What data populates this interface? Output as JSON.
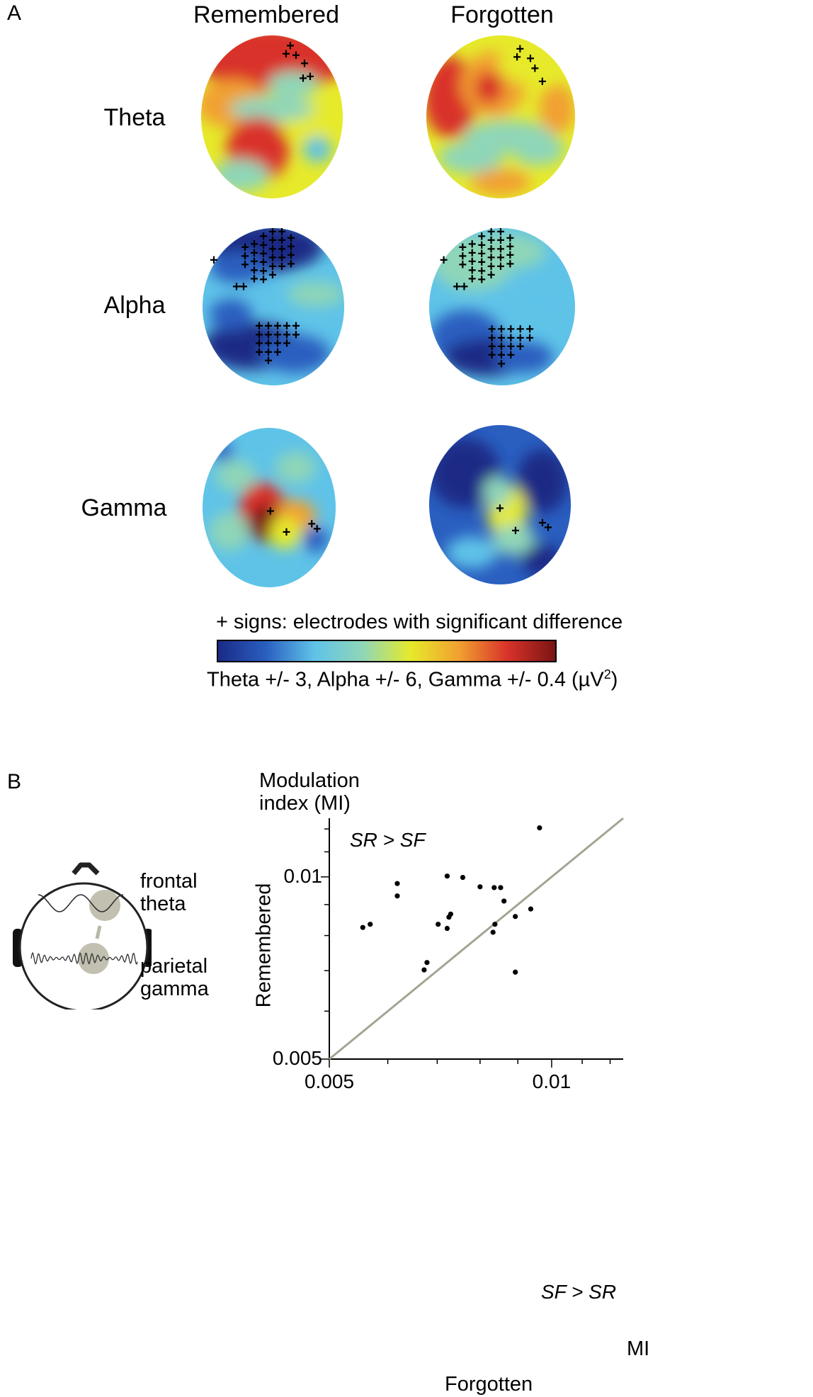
{
  "panel_a": {
    "letter": "A",
    "columns": [
      "Remembered",
      "Forgotten"
    ],
    "rows": [
      "Theta",
      "Alpha",
      "Gamma"
    ],
    "legend_title": "+ signs: electrodes with significant difference",
    "legend_scale_prefix": "Theta +/- 3, Alpha +/- 6, Gamma +/- 0.4 (µV",
    "legend_scale_sup": "2",
    "legend_scale_suffix": ")",
    "colormap": [
      "#1a2a86",
      "#2a5fc0",
      "#5fc3e8",
      "#8fd6b8",
      "#e6ea2a",
      "#f1a030",
      "#d9332a",
      "#7a1414"
    ]
  },
  "panel_b": {
    "letter": "B",
    "head_labels": {
      "frontal": [
        "frontal",
        "theta"
      ],
      "parietal": [
        "parietal",
        "gamma"
      ]
    }
  },
  "chart_data": {
    "type": "scatter",
    "xlabel": "Forgotten",
    "ylabel": "Remembered",
    "y_title": [
      "Modulation",
      "index (MI)"
    ],
    "x_unit_label": "MI",
    "scale": "log",
    "xlim": [
      0.005,
      0.0125
    ],
    "ylim": [
      0.005,
      0.0125
    ],
    "x_ticks": [
      {
        "value": 0.005,
        "label": "0.005"
      },
      {
        "value": 0.01,
        "label": "0.01"
      }
    ],
    "y_ticks": [
      {
        "value": 0.005,
        "label": "0.005"
      },
      {
        "value": 0.01,
        "label": "0.01"
      }
    ],
    "annotations": {
      "upper_left": "SR > SF",
      "lower_right": "SF > SR"
    },
    "identity_line": true,
    "points": [
      {
        "x": 0.00555,
        "y": 0.00825
      },
      {
        "x": 0.00568,
        "y": 0.00835
      },
      {
        "x": 0.00618,
        "y": 0.00975
      },
      {
        "x": 0.00618,
        "y": 0.0093
      },
      {
        "x": 0.00672,
        "y": 0.00702
      },
      {
        "x": 0.00678,
        "y": 0.00722
      },
      {
        "x": 0.00702,
        "y": 0.00835
      },
      {
        "x": 0.00722,
        "y": 0.00822
      },
      {
        "x": 0.00722,
        "y": 0.01003
      },
      {
        "x": 0.00726,
        "y": 0.00858
      },
      {
        "x": 0.0073,
        "y": 0.00868
      },
      {
        "x": 0.00758,
        "y": 0.00998
      },
      {
        "x": 0.008,
        "y": 0.00963
      },
      {
        "x": 0.00833,
        "y": 0.0081
      },
      {
        "x": 0.00838,
        "y": 0.00835
      },
      {
        "x": 0.00836,
        "y": 0.0096
      },
      {
        "x": 0.00853,
        "y": 0.0096
      },
      {
        "x": 0.00862,
        "y": 0.00912
      },
      {
        "x": 0.00893,
        "y": 0.0086
      },
      {
        "x": 0.00893,
        "y": 0.00696
      },
      {
        "x": 0.00937,
        "y": 0.00885
      },
      {
        "x": 0.00963,
        "y": 0.01205
      }
    ]
  }
}
